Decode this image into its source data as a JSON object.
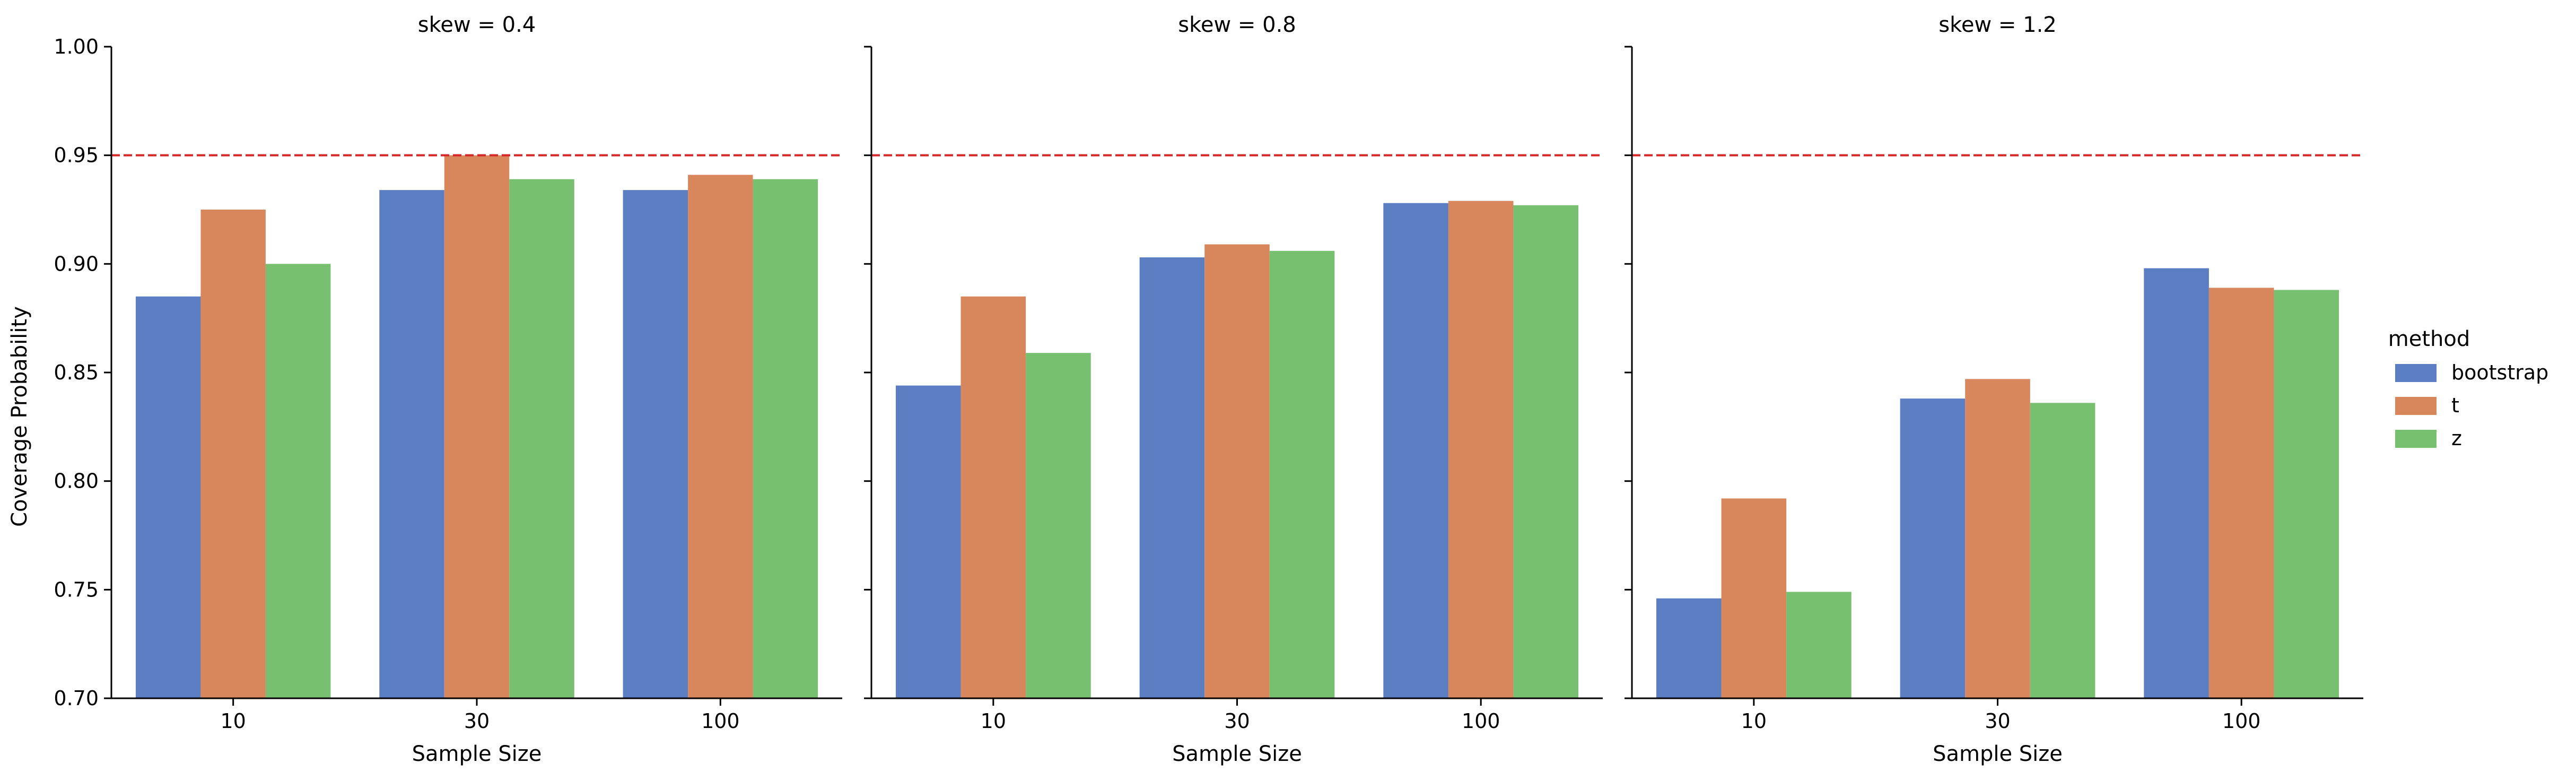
{
  "chart_data": {
    "type": "bar",
    "ylabel": "Coverage Probability",
    "xlabel": "Sample Size",
    "ylim": [
      0.7,
      1.0
    ],
    "yticks": [
      "0.70",
      "0.75",
      "0.80",
      "0.85",
      "0.90",
      "0.95",
      "1.00"
    ],
    "categories": [
      "10",
      "30",
      "100"
    ],
    "reference_line": {
      "y": 0.95,
      "style": "dashed",
      "color": "#d62728"
    },
    "legend": {
      "title": "method",
      "placement": "right"
    },
    "series_colors": {
      "bootstrap": "#5b7ec2",
      "t": "#d8875d",
      "z": "#77c070"
    },
    "panels": [
      {
        "title": "skew = 0.4",
        "series": [
          {
            "name": "bootstrap",
            "values": [
              0.885,
              0.934,
              0.934
            ]
          },
          {
            "name": "t",
            "values": [
              0.925,
              0.95,
              0.941
            ]
          },
          {
            "name": "z",
            "values": [
              0.9,
              0.939,
              0.939
            ]
          }
        ]
      },
      {
        "title": "skew = 0.8",
        "series": [
          {
            "name": "bootstrap",
            "values": [
              0.844,
              0.903,
              0.928
            ]
          },
          {
            "name": "t",
            "values": [
              0.885,
              0.909,
              0.929
            ]
          },
          {
            "name": "z",
            "values": [
              0.859,
              0.906,
              0.927
            ]
          }
        ]
      },
      {
        "title": "skew = 1.2",
        "series": [
          {
            "name": "bootstrap",
            "values": [
              0.746,
              0.838,
              0.898
            ]
          },
          {
            "name": "t",
            "values": [
              0.792,
              0.847,
              0.889
            ]
          },
          {
            "name": "z",
            "values": [
              0.749,
              0.836,
              0.888
            ]
          }
        ]
      }
    ]
  }
}
